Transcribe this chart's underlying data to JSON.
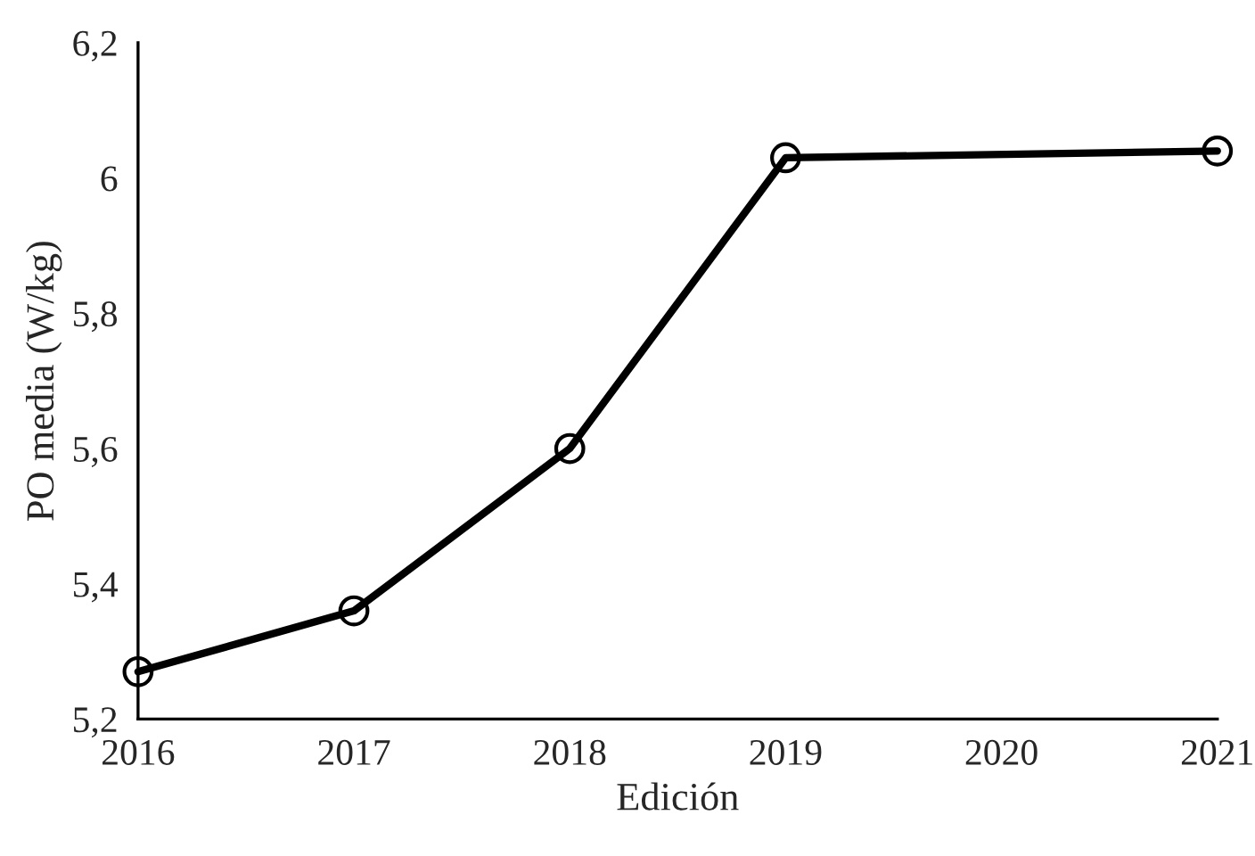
{
  "chart_data": {
    "type": "line",
    "xlabel": "Edición",
    "ylabel": "PO media (W/kg)",
    "x": [
      2016,
      2017,
      2018,
      2019,
      2021
    ],
    "series": [
      {
        "color": "#000000",
        "values": [
          5.27,
          5.36,
          5.6,
          6.03,
          6.04
        ]
      }
    ],
    "xlim": [
      2016,
      2021
    ],
    "xticks": [
      2016,
      2017,
      2018,
      2019,
      2020,
      2021
    ],
    "ylim": [
      5.2,
      6.2
    ],
    "yticks": [
      {
        "value": 5.2,
        "label": "5,2"
      },
      {
        "value": 5.4,
        "label": "5,4"
      },
      {
        "value": 5.6,
        "label": "5,6"
      },
      {
        "value": 5.8,
        "label": "5,8"
      },
      6,
      {
        "value": 6.2,
        "label": "6,2"
      }
    ],
    "marker": "circle",
    "line_style": "solid",
    "grid": false,
    "legend": false
  }
}
